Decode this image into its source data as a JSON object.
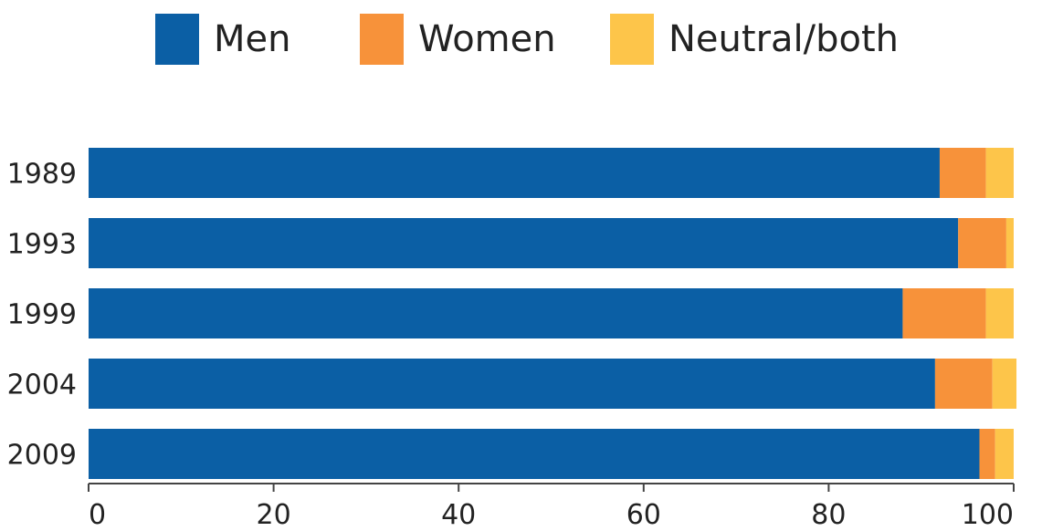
{
  "chart_data": {
    "type": "bar",
    "orientation": "horizontal",
    "stacked": true,
    "categories": [
      "1989",
      "1993",
      "1999",
      "2004",
      "2009"
    ],
    "series": [
      {
        "name": "Men",
        "color": "#0b5fa5",
        "values": [
          92,
          94,
          88,
          91.5,
          96.3
        ]
      },
      {
        "name": "Women",
        "color": "#f7923a",
        "values": [
          5,
          5.2,
          9,
          6.2,
          1.7
        ]
      },
      {
        "name": "Neutral/both",
        "color": "#fdc54a",
        "values": [
          3,
          0.8,
          3,
          2.6,
          2
        ]
      }
    ],
    "xticks": [
      "0",
      "20",
      "40",
      "60",
      "80",
      "100"
    ],
    "xlim": [
      0,
      100
    ],
    "title": "",
    "xlabel": "",
    "ylabel": "",
    "legend_position": "top",
    "grid": false
  }
}
